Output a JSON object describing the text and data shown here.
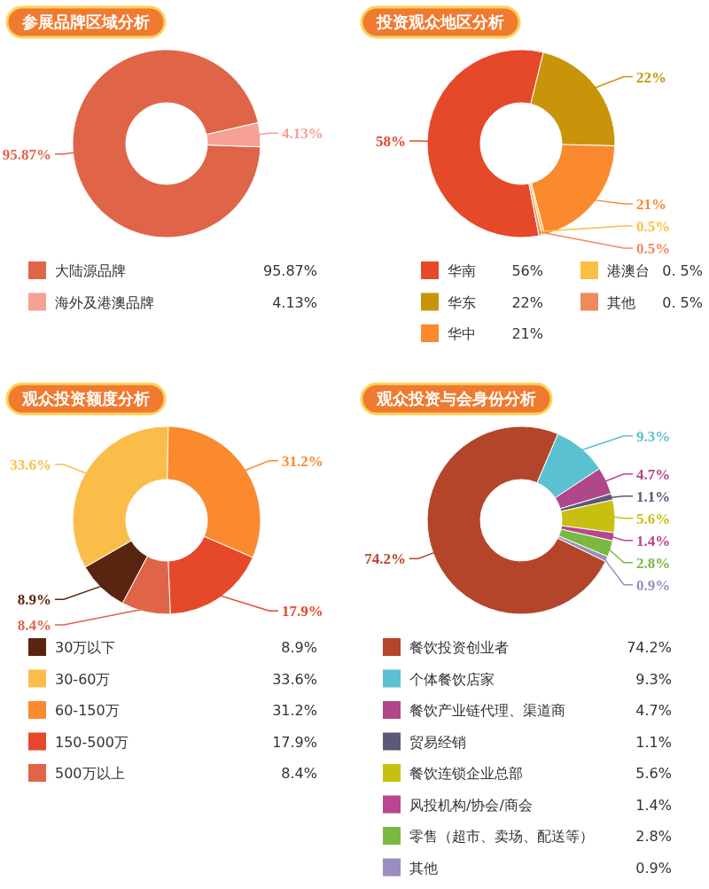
{
  "chart_data": [
    {
      "type": "donut",
      "title": "参展品牌区域分析",
      "categories": [
        "大陆源品牌",
        "海外及港澳品牌"
      ],
      "values": [
        95.87,
        4.13
      ],
      "colors": [
        "#e06448",
        "#f6a193"
      ],
      "value_labels": [
        "95.87%",
        "4.13%"
      ],
      "annotations": [
        "95.87%",
        "4.13%"
      ],
      "legend": "bottom"
    },
    {
      "type": "donut",
      "title": "投资观众地区分析",
      "categories": [
        "华南",
        "华东",
        "华中",
        "港澳台",
        "其他"
      ],
      "values": [
        58,
        22,
        21,
        0.5,
        0.5
      ],
      "colors": [
        "#e5492a",
        "#c8950a",
        "#fb8a2e",
        "#fbbf45",
        "#ef8a5c"
      ],
      "value_labels": [
        "58%",
        "22%",
        "21%",
        "0.5%",
        "0.5%"
      ],
      "annotations": [
        "56%",
        "22%",
        "21%",
        "0. 5%",
        "0. 5%"
      ],
      "legend": "bottom"
    },
    {
      "type": "donut",
      "title": "观众投资额度分析",
      "categories": [
        "30万以下",
        "30-60万",
        "60-150万",
        "150-500万",
        "500万以上"
      ],
      "values": [
        8.9,
        33.6,
        31.2,
        17.9,
        8.4
      ],
      "colors": [
        "#5a2510",
        "#fbbd4a",
        "#fb8a2e",
        "#e5492a",
        "#e06448"
      ],
      "value_labels": [
        "8.9%",
        "33.6%",
        "31.2%",
        "17.9%",
        "8.4%"
      ],
      "annotations": [
        "8.9%",
        "33.6%",
        "31.2%",
        "17.9%",
        "8.4%"
      ],
      "legend": "bottom"
    },
    {
      "type": "donut",
      "title": "观众投资与会身份分析",
      "categories": [
        "餐饮投资创业者",
        "个体餐饮店家",
        "餐饮产业链代理、渠道商",
        "贸易经销",
        "餐饮连锁企业总部",
        "风投机构/协会/商会",
        "零售（超市、卖场、配送等）",
        "其他"
      ],
      "values": [
        74.2,
        9.3,
        4.7,
        1.1,
        5.6,
        1.4,
        2.8,
        0.9
      ],
      "colors": [
        "#b5452a",
        "#5bc0d0",
        "#b0478a",
        "#5a5a78",
        "#c8c010",
        "#b9468f",
        "#7ab840",
        "#9a8ec0"
      ],
      "value_labels": [
        "74.2%",
        "9.3%",
        "4.7%",
        "1.1%",
        "5.6%",
        "1.4%",
        "2.8%",
        "0.9%"
      ],
      "annotations": [
        "74.2%",
        "9.3%",
        "4.7%",
        "1.1%",
        "5.6%",
        "1.4%",
        "2.8%",
        "0.9%"
      ],
      "legend": "bottom"
    }
  ]
}
